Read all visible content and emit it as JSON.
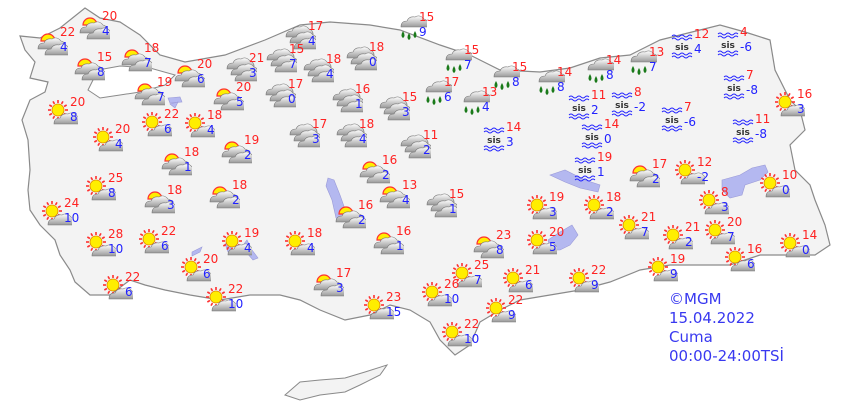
{
  "caption": {
    "copyright": "©MGM",
    "date": "15.04.2022",
    "day": "Cuma",
    "period": "00:00-24:00TSİ"
  },
  "colors": {
    "land": "#f3f3f3",
    "border": "#8a8a8a",
    "lake": "#b4b8f0",
    "high_temp": "#ff2222",
    "low_temp": "#2222ff",
    "caption": "#3838f0"
  },
  "fog_label": "sis",
  "stations": [
    {
      "icon": "partly-cloudy",
      "high": "20",
      "low": "4"
    },
    {
      "icon": "partly-cloudy",
      "high": "22",
      "low": "4"
    },
    {
      "icon": "partly-cloudy",
      "high": "15",
      "low": "8"
    },
    {
      "icon": "partly-cloudy",
      "high": "18",
      "low": "7"
    },
    {
      "icon": "partly-cloudy",
      "high": "20",
      "low": "6"
    },
    {
      "icon": "partly-cloudy",
      "high": "19",
      "low": "7"
    },
    {
      "icon": "partly-cloudy",
      "high": "20",
      "low": "5"
    },
    {
      "icon": "sunny-cloud",
      "high": "20",
      "low": "8"
    },
    {
      "icon": "sunny-cloud",
      "high": "22",
      "low": "6"
    },
    {
      "icon": "sunny-cloud",
      "high": "18",
      "low": "4"
    },
    {
      "icon": "sunny-cloud",
      "high": "20",
      "low": "4"
    },
    {
      "icon": "partly-cloudy",
      "high": "19",
      "low": "2"
    },
    {
      "icon": "partly-cloudy",
      "high": "18",
      "low": "1"
    },
    {
      "icon": "sunny-cloud",
      "high": "25",
      "low": "8"
    },
    {
      "icon": "partly-cloudy",
      "high": "18",
      "low": "3"
    },
    {
      "icon": "partly-cloudy",
      "high": "18",
      "low": "2"
    },
    {
      "icon": "sunny-cloud",
      "high": "24",
      "low": "10"
    },
    {
      "icon": "sunny-cloud",
      "high": "28",
      "low": "10"
    },
    {
      "icon": "sunny-cloud",
      "high": "22",
      "low": "6"
    },
    {
      "icon": "sunny-cloud",
      "high": "19",
      "low": "4"
    },
    {
      "icon": "sunny-cloud",
      "high": "18",
      "low": "4"
    },
    {
      "icon": "partly-cloudy",
      "high": "16",
      "low": "2"
    },
    {
      "icon": "partly-cloudy",
      "high": "16",
      "low": "1"
    },
    {
      "icon": "sunny-cloud",
      "high": "20",
      "low": "6"
    },
    {
      "icon": "sunny-cloud",
      "high": "22",
      "low": "6"
    },
    {
      "icon": "sunny-cloud",
      "high": "22",
      "low": "10"
    },
    {
      "icon": "partly-cloudy",
      "high": "17",
      "low": "3"
    },
    {
      "icon": "sunny-cloud",
      "high": "23",
      "low": "15"
    },
    {
      "icon": "cloudy",
      "high": "17",
      "low": "4"
    },
    {
      "icon": "cloudy",
      "high": "21",
      "low": "3"
    },
    {
      "icon": "cloudy",
      "high": "15",
      "low": "7"
    },
    {
      "icon": "cloudy",
      "high": "18",
      "low": "4"
    },
    {
      "icon": "cloudy",
      "high": "18",
      "low": "0"
    },
    {
      "icon": "cloudy",
      "high": "17",
      "low": "0"
    },
    {
      "icon": "cloudy",
      "high": "16",
      "low": "1"
    },
    {
      "icon": "cloudy",
      "high": "15",
      "low": "3"
    },
    {
      "icon": "cloudy",
      "high": "17",
      "low": "3"
    },
    {
      "icon": "cloudy",
      "high": "18",
      "low": "4"
    },
    {
      "icon": "cloudy",
      "high": "11",
      "low": "2"
    },
    {
      "icon": "partly-cloudy",
      "high": "16",
      "low": "2"
    },
    {
      "icon": "partly-cloudy",
      "high": "13",
      "low": "4"
    },
    {
      "icon": "cloudy",
      "high": "15",
      "low": "1"
    },
    {
      "icon": "rain",
      "high": "15",
      "low": "9"
    },
    {
      "icon": "rain",
      "high": "15",
      "low": "7"
    },
    {
      "icon": "rain",
      "high": "17",
      "low": "6"
    },
    {
      "icon": "rain",
      "high": "13",
      "low": "4"
    },
    {
      "icon": "rain",
      "high": "15",
      "low": "8"
    },
    {
      "icon": "rain",
      "high": "14",
      "low": "8"
    },
    {
      "icon": "rain",
      "high": "14",
      "low": "8"
    },
    {
      "icon": "rain",
      "high": "13",
      "low": "7"
    },
    {
      "icon": "fog",
      "high": "12",
      "low": "4"
    },
    {
      "icon": "fog",
      "high": "4",
      "low": "-6"
    },
    {
      "icon": "fog",
      "high": "11",
      "low": "2"
    },
    {
      "icon": "fog",
      "high": "8",
      "low": "-2"
    },
    {
      "icon": "fog",
      "high": "14",
      "low": "3"
    },
    {
      "icon": "fog",
      "high": "14",
      "low": "0"
    },
    {
      "icon": "fog",
      "high": "7",
      "low": "-6"
    },
    {
      "icon": "fog",
      "high": "7",
      "low": "-8"
    },
    {
      "icon": "fog",
      "high": "11",
      "low": "-8"
    },
    {
      "icon": "fog",
      "high": "19",
      "low": "1"
    },
    {
      "icon": "sunny-cloud",
      "high": "16",
      "low": "3"
    },
    {
      "icon": "partly-cloudy",
      "high": "17",
      "low": "2"
    },
    {
      "icon": "sunny-cloud",
      "high": "12",
      "low": "-2"
    },
    {
      "icon": "sunny-cloud",
      "high": "10",
      "low": "0"
    },
    {
      "icon": "sunny-cloud",
      "high": "8",
      "low": "3"
    },
    {
      "icon": "sunny-cloud",
      "high": "19",
      "low": "3"
    },
    {
      "icon": "sunny-cloud",
      "high": "18",
      "low": "2"
    },
    {
      "icon": "sunny-cloud",
      "high": "21",
      "low": "7"
    },
    {
      "icon": "sunny-cloud",
      "high": "21",
      "low": "2"
    },
    {
      "icon": "sunny-cloud",
      "high": "20",
      "low": "7"
    },
    {
      "icon": "sunny-cloud",
      "high": "14",
      "low": "0"
    },
    {
      "icon": "sunny-cloud",
      "high": "16",
      "low": "6"
    },
    {
      "icon": "partly-cloudy",
      "high": "23",
      "low": "8"
    },
    {
      "icon": "sunny-cloud",
      "high": "20",
      "low": "5"
    },
    {
      "icon": "sunny-cloud",
      "high": "25",
      "low": "7"
    },
    {
      "icon": "sunny-cloud",
      "high": "21",
      "low": "6"
    },
    {
      "icon": "sunny-cloud",
      "high": "22",
      "low": "9"
    },
    {
      "icon": "sunny-cloud",
      "high": "19",
      "low": "9"
    },
    {
      "icon": "sunny-cloud",
      "high": "26",
      "low": "10"
    },
    {
      "icon": "sunny-cloud",
      "high": "22",
      "low": "9"
    },
    {
      "icon": "sunny-cloud",
      "high": "22",
      "low": "10"
    }
  ]
}
